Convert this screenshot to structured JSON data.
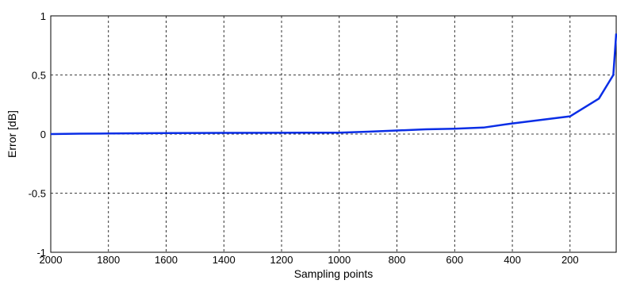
{
  "chart_data": {
    "type": "line",
    "xlabel": "Sampling points",
    "ylabel": "Error [dB]",
    "xlim": [
      2000,
      40
    ],
    "ylim": [
      -1,
      1
    ],
    "x_reversed": true,
    "grid": true,
    "grid_style": "dashed",
    "x_ticks": [
      2000,
      1800,
      1600,
      1400,
      1200,
      1000,
      800,
      600,
      400,
      200
    ],
    "y_ticks": [
      -1,
      -0.5,
      0,
      0.5,
      1
    ],
    "series": [
      {
        "color": "#0a2ee6",
        "x": [
          2000,
          1900,
          1800,
          1600,
          1400,
          1200,
          1000,
          900,
          800,
          700,
          600,
          500,
          400,
          300,
          200,
          100,
          50,
          40
        ],
        "y": [
          0.0,
          0.003,
          0.005,
          0.008,
          0.01,
          0.011,
          0.012,
          0.02,
          0.03,
          0.04,
          0.045,
          0.055,
          0.09,
          0.12,
          0.15,
          0.3,
          0.5,
          0.85
        ]
      }
    ]
  }
}
